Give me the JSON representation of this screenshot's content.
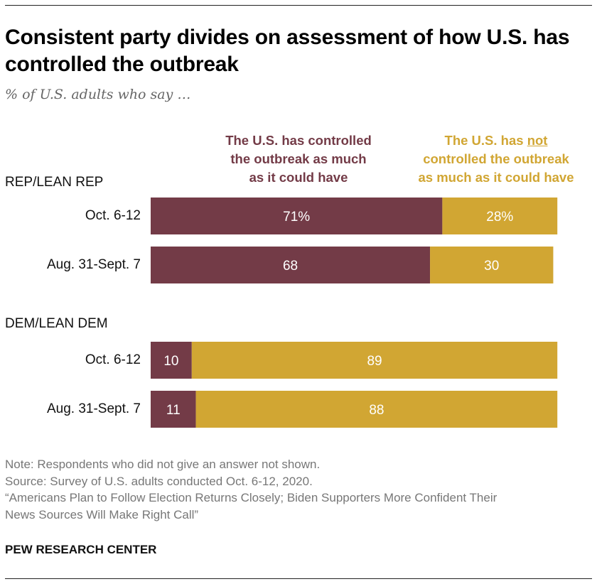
{
  "chart_data": {
    "type": "bar",
    "orientation": "horizontal",
    "stacked": true,
    "title": "Consistent party divides on assessment of how U.S. has controlled the outbreak",
    "subtitle": "% of U.S. adults who say …",
    "series": [
      {
        "name": "The U.S. has controlled the outbreak as much as it could have",
        "color": "#733b47"
      },
      {
        "name": "The U.S. has not controlled the outbreak as much as it could have",
        "color": "#d1a633"
      }
    ],
    "legend": {
      "a": {
        "line1": "The U.S. has controlled",
        "line2": "the outbreak as much",
        "line3": "as it could have"
      },
      "b": {
        "pre": "The U.S. has ",
        "emph": "not",
        "line2": "controlled the outbreak",
        "line3": "as much as it could have"
      }
    },
    "groups": [
      {
        "name": "REP/LEAN REP",
        "rows": [
          {
            "label": "Oct. 6-12",
            "values": [
              71,
              28
            ],
            "labels": [
              "71%",
              "28%"
            ]
          },
          {
            "label": "Aug. 31-Sept. 7",
            "values": [
              68,
              30
            ],
            "labels": [
              "68",
              "30"
            ]
          }
        ]
      },
      {
        "name": "DEM/LEAN DEM",
        "rows": [
          {
            "label": "Oct. 6-12",
            "values": [
              10,
              89
            ],
            "labels": [
              "10",
              "89"
            ]
          },
          {
            "label": "Aug. 31-Sept. 7",
            "values": [
              11,
              88
            ],
            "labels": [
              "11",
              "88"
            ]
          }
        ]
      }
    ],
    "xlim": [
      0,
      100
    ]
  },
  "footer": {
    "note": "Note: Respondents who did not give an answer not shown.",
    "source": "Source: Survey of U.S. adults conducted Oct. 6-12, 2020.",
    "report_line1": "“Americans Plan to Follow Election Returns Closely; Biden Supporters More Confident Their",
    "report_line2": "News Sources Will Make Right Call”",
    "brand": "PEW RESEARCH CENTER"
  }
}
